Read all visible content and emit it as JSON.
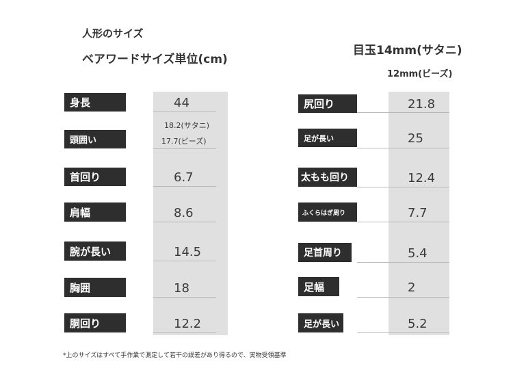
{
  "header": {
    "doll_size": "人形のサイズ",
    "bear_title": "ベアワードサイズ単位(cm)",
    "eye_satani": "目玉14mm(サタニ)",
    "eye_beads": "12mm(ビーズ)"
  },
  "left_table": [
    {
      "label": "身長",
      "value": "44"
    },
    {
      "label": "頭囲い",
      "value_line1": "18.2(サタニ)",
      "value_line2": "17.7(ビーズ)"
    },
    {
      "label": "首回り",
      "value": "6.7"
    },
    {
      "label": "肩幅",
      "value": "8.6"
    },
    {
      "label": "腕が長い",
      "value": "14.5"
    },
    {
      "label": "胸囲",
      "value": "18"
    },
    {
      "label": "胴回り",
      "value": "12.2"
    }
  ],
  "right_table": [
    {
      "label": "尻回り",
      "value": "21.8"
    },
    {
      "label": "足が長い",
      "value": "25"
    },
    {
      "label": "太もも回り",
      "value": "12.4"
    },
    {
      "label": "ふくらはぎ周り",
      "value": "7.7"
    },
    {
      "label": "足首周り",
      "value": "5.4"
    },
    {
      "label": "足幅",
      "value": "2"
    },
    {
      "label": "足が長い",
      "value": "5.2"
    }
  ],
  "footnote": "*上のサイズはすべて手作業で測定して若干の誤差があり得るので、実物受領基準"
}
